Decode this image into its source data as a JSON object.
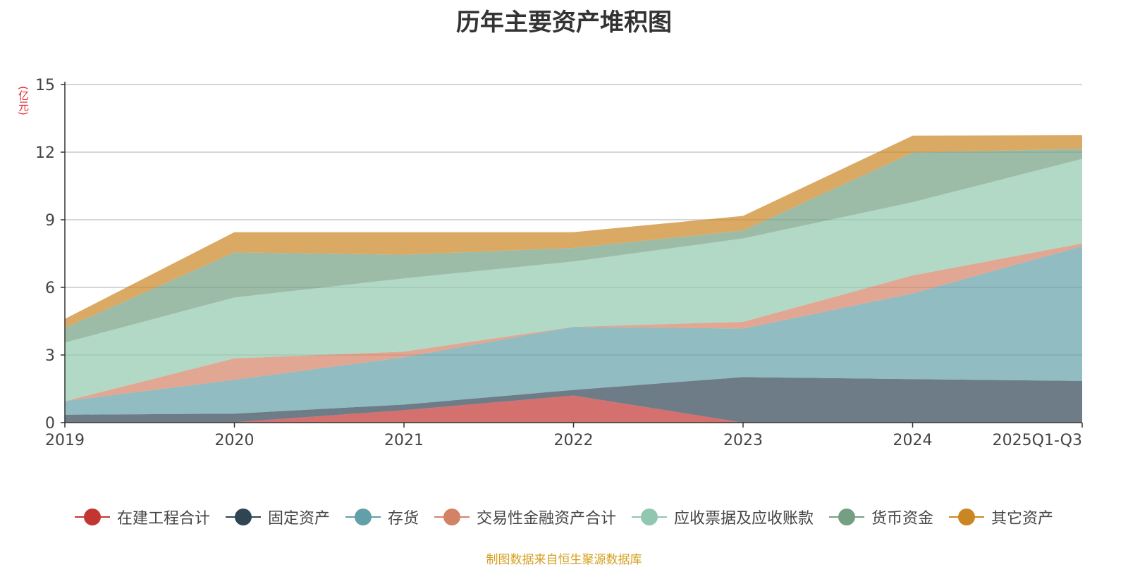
{
  "chart_data": {
    "type": "area",
    "stacked": true,
    "title": "历年主要资产堆积图",
    "unit": "(亿元)",
    "categories": [
      "2019",
      "2020",
      "2021",
      "2022",
      "2023",
      "2024",
      "2025Q1-Q3"
    ],
    "ylim": [
      0,
      15
    ],
    "yticks": [
      0,
      3,
      6,
      9,
      12,
      15
    ],
    "grid": true,
    "legend_position": "bottom",
    "series": [
      {
        "name": "在建工程合计",
        "color": "#c23531",
        "values": [
          0,
          0.02,
          0.55,
          1.2,
          0.0,
          0.0,
          0.0
        ]
      },
      {
        "name": "固定资产",
        "color": "#2f4554",
        "values": [
          0.35,
          0.38,
          0.25,
          0.25,
          2.02,
          1.93,
          1.85
        ]
      },
      {
        "name": "存货",
        "color": "#61a0a8",
        "values": [
          0.6,
          1.5,
          2.1,
          2.8,
          2.15,
          3.8,
          5.98
        ]
      },
      {
        "name": "交易性金融资产合计",
        "color": "#d48265",
        "values": [
          0.0,
          0.95,
          0.25,
          0.0,
          0.3,
          0.8,
          0.12
        ]
      },
      {
        "name": "应收票据及应收账款",
        "color": "#91c7ae",
        "values": [
          2.6,
          2.7,
          3.25,
          2.9,
          3.7,
          3.25,
          3.75
        ]
      },
      {
        "name": "货币资金",
        "color": "#749f83",
        "values": [
          0.65,
          2.0,
          1.05,
          0.6,
          0.35,
          2.2,
          0.45
        ]
      },
      {
        "name": "其它资产",
        "color": "#ca8622",
        "values": [
          0.4,
          0.9,
          1.0,
          0.7,
          0.65,
          0.75,
          0.6
        ]
      }
    ]
  },
  "footer": {
    "source": "制图数据来自恒生聚源数据库"
  }
}
